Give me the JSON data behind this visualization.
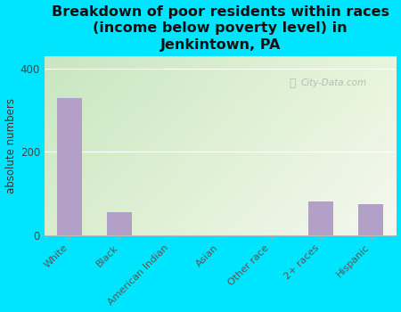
{
  "categories": [
    "White",
    "Black",
    "American Indian",
    "Asian",
    "Other race",
    "2+ races",
    "Hispanic"
  ],
  "values": [
    330,
    55,
    0,
    0,
    0,
    80,
    75
  ],
  "bar_color": "#b3a0c8",
  "background_outer": "#00e5ff",
  "grad_top_left": "#c8e6c0",
  "grad_bottom_right": "#f0f5e8",
  "title": "Breakdown of poor residents within races\n(income below poverty level) in\nJenkintown, PA",
  "ylabel": "absolute numbers",
  "yticks": [
    0,
    200,
    400
  ],
  "ylim": [
    0,
    430
  ],
  "watermark": "City-Data.com",
  "title_fontsize": 11.5,
  "tick_label_fontsize": 8,
  "ylabel_fontsize": 8.5
}
